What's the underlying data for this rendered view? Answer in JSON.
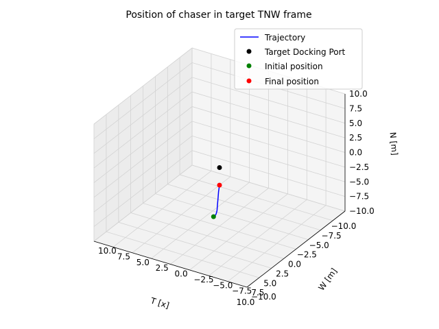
{
  "chart_data": {
    "type": "scatter",
    "projection": "3d",
    "title": "Position of chaser in target TNW frame",
    "xlabel": "T [x]",
    "ylabel": "W [m]",
    "zlabel": "N [m]",
    "xlim": [
      -10,
      10
    ],
    "ylim": [
      -10,
      10
    ],
    "zlim": [
      -10,
      10
    ],
    "x_ticks": [
      "−10.0",
      "−7.5",
      "−5.0",
      "−2.5",
      "0.0",
      "2.5",
      "5.0",
      "7.5",
      "10.0"
    ],
    "y_ticks": [
      "−10.0",
      "−7.5",
      "−5.0",
      "−2.5",
      "0.0",
      "2.5",
      "5.0",
      "7.5",
      "10.0"
    ],
    "z_ticks": [
      "−10.0",
      "−7.5",
      "−5.0",
      "−2.5",
      "0.0",
      "2.5",
      "5.0",
      "7.5",
      "10.0"
    ],
    "grid": true,
    "legend_position": "top-right",
    "series": [
      {
        "name": "Trajectory",
        "kind": "line",
        "color": "#0000ff",
        "x": [
          0.75,
          0.7,
          0.6,
          0.5,
          0.4,
          0.3,
          0.2,
          0.1,
          0.0
        ],
        "y": [
          0.3,
          0.15,
          0.05,
          0.0,
          0.0,
          0.0,
          0.0,
          0.0,
          0.0
        ],
        "z": [
          -8.0,
          -7.9,
          -7.5,
          -7.0,
          -6.0,
          -5.0,
          -4.0,
          -3.5,
          -3.0
        ]
      },
      {
        "name": "Target Docking Port",
        "kind": "point",
        "color": "#000000",
        "x": [
          0.0
        ],
        "y": [
          0.0
        ],
        "z": [
          0.0
        ]
      },
      {
        "name": "Initial position",
        "kind": "point",
        "color": "#008000",
        "x": [
          0.75
        ],
        "y": [
          0.3
        ],
        "z": [
          -8.0
        ]
      },
      {
        "name": "Final position",
        "kind": "point",
        "color": "#ff0000",
        "x": [
          0.0
        ],
        "y": [
          0.0
        ],
        "z": [
          -3.0
        ]
      }
    ]
  }
}
